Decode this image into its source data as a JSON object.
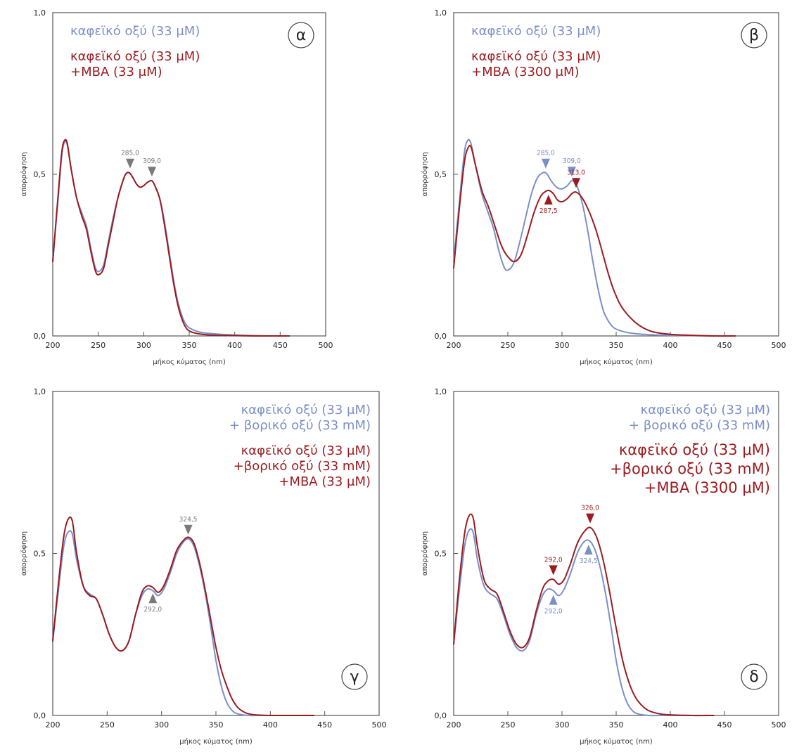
{
  "colors": {
    "blue": "#7b8fc8",
    "red": "#9b1b1f",
    "gray": "#7a7a7a",
    "axis": "#555555"
  },
  "chart_data": [
    {
      "type": "line",
      "id": "a",
      "panel_label": "α",
      "xlabel": "μήκος κύματος (nm)",
      "ylabel": "απορρόφηση",
      "xlim": [
        200,
        500
      ],
      "ylim": [
        0,
        1
      ],
      "xticks": [
        "200",
        "250",
        "300",
        "350",
        "400",
        "450",
        "500"
      ],
      "yticks": [
        "0,0",
        "0,5",
        "1,0"
      ],
      "legend_align": "left",
      "legend": [
        {
          "color": "blue",
          "lines": [
            "καφεϊκό οξύ (33 μM)"
          ]
        },
        {
          "color": "red",
          "lines": [
            "καφεϊκό οξύ (33 μM)",
            "+MBA (33 μM)"
          ]
        }
      ],
      "series": [
        {
          "color": "blue",
          "x": [
            200,
            206,
            210,
            213,
            216,
            220,
            226,
            232,
            237,
            242,
            247,
            251,
            256,
            261,
            266,
            271,
            276,
            280,
            284,
            288,
            292,
            296,
            300,
            304,
            309,
            313,
            318,
            323,
            328,
            333,
            338,
            343,
            348,
            355,
            365,
            380,
            400,
            420,
            440,
            460
          ],
          "y": [
            0.23,
            0.43,
            0.56,
            0.6,
            0.59,
            0.52,
            0.43,
            0.38,
            0.34,
            0.27,
            0.21,
            0.2,
            0.22,
            0.29,
            0.36,
            0.42,
            0.47,
            0.5,
            0.505,
            0.49,
            0.47,
            0.46,
            0.465,
            0.475,
            0.48,
            0.46,
            0.42,
            0.35,
            0.26,
            0.17,
            0.1,
            0.055,
            0.03,
            0.018,
            0.01,
            0.006,
            0.003,
            0.001,
            0.0,
            0.0
          ]
        },
        {
          "color": "red",
          "x": [
            200,
            206,
            210,
            213,
            216,
            220,
            226,
            232,
            237,
            242,
            247,
            251,
            256,
            261,
            266,
            271,
            276,
            280,
            284,
            288,
            292,
            296,
            300,
            304,
            309,
            313,
            318,
            323,
            328,
            333,
            338,
            343,
            348,
            355,
            365,
            380,
            400,
            420,
            440,
            460
          ],
          "y": [
            0.23,
            0.44,
            0.57,
            0.605,
            0.595,
            0.52,
            0.43,
            0.37,
            0.33,
            0.26,
            0.2,
            0.19,
            0.21,
            0.28,
            0.35,
            0.42,
            0.47,
            0.5,
            0.505,
            0.49,
            0.47,
            0.46,
            0.465,
            0.475,
            0.48,
            0.46,
            0.42,
            0.34,
            0.25,
            0.16,
            0.09,
            0.045,
            0.02,
            0.01,
            0.005,
            0.002,
            0.001,
            0.0,
            0.0,
            0.0
          ]
        }
      ],
      "markers": [
        {
          "label": "285,0",
          "x": 285,
          "y": 0.505,
          "dir": "down",
          "color": "gray"
        },
        {
          "label": "309,0",
          "x": 309,
          "y": 0.48,
          "dir": "down",
          "color": "gray"
        }
      ]
    },
    {
      "type": "line",
      "id": "b",
      "panel_label": "β",
      "xlabel": "μήκος κύματος (nm)",
      "ylabel": "απορρόφηση",
      "xlim": [
        200,
        500
      ],
      "ylim": [
        0,
        1
      ],
      "xticks": [
        "200",
        "250",
        "300",
        "350",
        "400",
        "450",
        "500"
      ],
      "yticks": [
        "0,0",
        "0,5",
        "1,0"
      ],
      "legend_align": "left",
      "legend": [
        {
          "color": "blue",
          "lines": [
            "καφεϊκό οξύ (33 μM)"
          ]
        },
        {
          "color": "red",
          "lines": [
            "καφεϊκό οξύ (33 μM)",
            "+MBA (3300 μM)"
          ]
        }
      ],
      "series": [
        {
          "color": "blue",
          "x": [
            200,
            206,
            210,
            213,
            216,
            220,
            226,
            232,
            237,
            242,
            247,
            251,
            256,
            261,
            266,
            271,
            276,
            280,
            285,
            290,
            295,
            300,
            305,
            309,
            313,
            318,
            323,
            328,
            333,
            338,
            343,
            348,
            355,
            365,
            380,
            400,
            420,
            440,
            460
          ],
          "y": [
            0.23,
            0.44,
            0.57,
            0.605,
            0.595,
            0.53,
            0.44,
            0.38,
            0.33,
            0.26,
            0.21,
            0.205,
            0.23,
            0.29,
            0.36,
            0.43,
            0.48,
            0.5,
            0.505,
            0.48,
            0.46,
            0.455,
            0.465,
            0.48,
            0.47,
            0.42,
            0.34,
            0.24,
            0.15,
            0.08,
            0.045,
            0.025,
            0.015,
            0.008,
            0.004,
            0.002,
            0.001,
            0.0,
            0.0
          ]
        },
        {
          "color": "red",
          "x": [
            200,
            206,
            210,
            213,
            216,
            220,
            226,
            232,
            238,
            244,
            250,
            256,
            262,
            268,
            274,
            280,
            284,
            288,
            292,
            296,
            300,
            305,
            309,
            313,
            318,
            323,
            328,
            333,
            338,
            343,
            348,
            355,
            365,
            375,
            385,
            400,
            420,
            440,
            460
          ],
          "y": [
            0.21,
            0.42,
            0.54,
            0.58,
            0.585,
            0.53,
            0.45,
            0.4,
            0.34,
            0.28,
            0.245,
            0.23,
            0.25,
            0.31,
            0.38,
            0.43,
            0.445,
            0.45,
            0.44,
            0.42,
            0.415,
            0.425,
            0.44,
            0.445,
            0.43,
            0.4,
            0.36,
            0.31,
            0.25,
            0.19,
            0.14,
            0.09,
            0.05,
            0.025,
            0.012,
            0.005,
            0.002,
            0.0,
            0.0
          ]
        }
      ],
      "markers": [
        {
          "label": "285,0",
          "x": 285,
          "y": 0.505,
          "dir": "down",
          "color": "blue"
        },
        {
          "label": "309,0",
          "x": 309,
          "y": 0.48,
          "dir": "down",
          "color": "blue"
        },
        {
          "label": "313,0",
          "x": 313,
          "y": 0.445,
          "dir": "down",
          "color": "red"
        },
        {
          "label": "287,5",
          "x": 287.5,
          "y": 0.45,
          "dir": "up",
          "color": "red"
        }
      ]
    },
    {
      "type": "line",
      "id": "c",
      "panel_label": "γ",
      "xlabel": "μήκος κύματος (nm)",
      "ylabel": "απορρόφηση",
      "xlim": [
        200,
        500
      ],
      "ylim": [
        0,
        1
      ],
      "xticks": [
        "200",
        "250",
        "300",
        "350",
        "400",
        "450",
        "500"
      ],
      "yticks": [
        "0,0",
        "0,5",
        "1,0"
      ],
      "legend_align": "right",
      "legend": [
        {
          "color": "blue",
          "lines": [
            "καφεϊκό οξύ (33 μM)",
            "+ βορικό οξύ (33 mM)"
          ]
        },
        {
          "color": "red",
          "lines": [
            "καφεϊκό οξύ (33 μM)",
            "+βορικό οξύ (33 mM)",
            "+MBA (33 μM)"
          ]
        }
      ],
      "series": [
        {
          "color": "blue",
          "x": [
            200,
            205,
            210,
            214,
            218,
            222,
            228,
            234,
            240,
            246,
            252,
            258,
            264,
            270,
            276,
            282,
            287,
            292,
            297,
            302,
            308,
            314,
            320,
            325,
            330,
            335,
            340,
            345,
            350,
            355,
            360,
            365,
            370,
            380,
            390,
            400,
            420,
            440
          ],
          "y": [
            0.23,
            0.38,
            0.52,
            0.565,
            0.56,
            0.48,
            0.4,
            0.375,
            0.36,
            0.31,
            0.25,
            0.21,
            0.2,
            0.23,
            0.31,
            0.37,
            0.39,
            0.385,
            0.37,
            0.39,
            0.44,
            0.5,
            0.535,
            0.545,
            0.52,
            0.46,
            0.38,
            0.28,
            0.17,
            0.09,
            0.04,
            0.015,
            0.005,
            0.0,
            0.0,
            0.0,
            0.0,
            0.0
          ]
        },
        {
          "color": "red",
          "x": [
            200,
            205,
            210,
            214,
            218,
            222,
            228,
            234,
            240,
            246,
            252,
            258,
            264,
            270,
            276,
            282,
            287,
            292,
            297,
            302,
            308,
            314,
            320,
            325,
            330,
            335,
            340,
            345,
            350,
            355,
            360,
            365,
            370,
            375,
            380,
            390,
            400,
            420,
            440
          ],
          "y": [
            0.23,
            0.4,
            0.55,
            0.605,
            0.6,
            0.5,
            0.4,
            0.37,
            0.36,
            0.31,
            0.25,
            0.21,
            0.2,
            0.23,
            0.31,
            0.38,
            0.4,
            0.395,
            0.38,
            0.4,
            0.45,
            0.51,
            0.54,
            0.55,
            0.53,
            0.47,
            0.39,
            0.3,
            0.21,
            0.14,
            0.09,
            0.05,
            0.025,
            0.012,
            0.005,
            0.001,
            0.0,
            0.0,
            0.0
          ]
        }
      ],
      "markers": [
        {
          "label": "324,5",
          "x": 324.5,
          "y": 0.545,
          "dir": "down",
          "color": "gray"
        },
        {
          "label": "292,0",
          "x": 292,
          "y": 0.39,
          "dir": "up",
          "color": "gray"
        }
      ]
    },
    {
      "type": "line",
      "id": "d",
      "panel_label": "δ",
      "xlabel": "μήκος κύματος (nm)",
      "ylabel": "απορρόφηση",
      "xlim": [
        200,
        500
      ],
      "ylim": [
        0,
        1
      ],
      "xticks": [
        "200",
        "250",
        "300",
        "350",
        "400",
        "450",
        "500"
      ],
      "yticks": [
        "0,0",
        "0,5",
        "1,0"
      ],
      "legend_align": "right",
      "legend": [
        {
          "color": "blue",
          "lines": [
            "καφεϊκό οξύ (33 μM)",
            "+ βορικό οξύ (33 mM)"
          ]
        },
        {
          "color": "red",
          "lines": [
            "καφεϊκό οξύ (33 μM)",
            "+βορικό οξύ (33 mM)",
            "+MBA (3300 μM)"
          ]
        }
      ],
      "series": [
        {
          "color": "blue",
          "x": [
            200,
            205,
            210,
            214,
            218,
            222,
            228,
            234,
            240,
            246,
            252,
            258,
            264,
            270,
            276,
            282,
            287,
            292,
            297,
            302,
            308,
            314,
            320,
            325,
            330,
            335,
            340,
            345,
            350,
            355,
            360,
            365,
            370,
            380,
            390,
            400,
            420,
            440
          ],
          "y": [
            0.22,
            0.38,
            0.52,
            0.57,
            0.565,
            0.48,
            0.4,
            0.375,
            0.36,
            0.31,
            0.25,
            0.21,
            0.2,
            0.23,
            0.31,
            0.37,
            0.39,
            0.385,
            0.37,
            0.39,
            0.44,
            0.5,
            0.535,
            0.54,
            0.515,
            0.46,
            0.38,
            0.28,
            0.17,
            0.09,
            0.04,
            0.015,
            0.005,
            0.0,
            0.0,
            0.0,
            0.0,
            0.0
          ]
        },
        {
          "color": "red",
          "x": [
            200,
            205,
            210,
            214,
            218,
            222,
            228,
            234,
            240,
            246,
            252,
            258,
            264,
            270,
            276,
            282,
            287,
            292,
            297,
            302,
            308,
            314,
            320,
            326,
            332,
            338,
            344,
            350,
            356,
            362,
            368,
            374,
            380,
            390,
            400,
            420,
            440
          ],
          "y": [
            0.22,
            0.41,
            0.56,
            0.615,
            0.61,
            0.52,
            0.42,
            0.39,
            0.375,
            0.32,
            0.26,
            0.22,
            0.21,
            0.24,
            0.32,
            0.39,
            0.415,
            0.42,
            0.405,
            0.42,
            0.47,
            0.53,
            0.565,
            0.58,
            0.55,
            0.48,
            0.38,
            0.27,
            0.17,
            0.1,
            0.055,
            0.03,
            0.015,
            0.005,
            0.002,
            0.0,
            0.0
          ]
        }
      ],
      "markers": [
        {
          "label": "326,0",
          "x": 326,
          "y": 0.58,
          "dir": "down",
          "color": "red"
        },
        {
          "label": "292,0",
          "x": 292,
          "y": 0.42,
          "dir": "down",
          "color": "red"
        },
        {
          "label": "324,5",
          "x": 324.5,
          "y": 0.54,
          "dir": "up",
          "color": "blue"
        },
        {
          "label": "292,0",
          "x": 292,
          "y": 0.385,
          "dir": "up",
          "color": "blue"
        }
      ]
    }
  ]
}
